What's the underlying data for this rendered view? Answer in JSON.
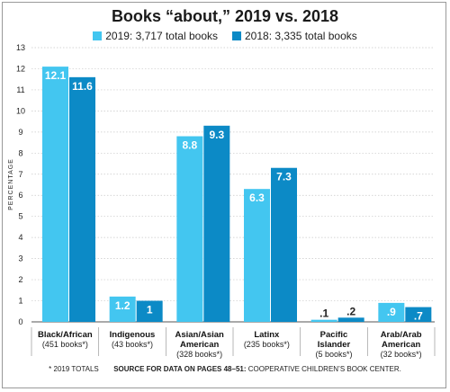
{
  "chart_data": {
    "type": "bar",
    "title": "Books “about,” 2019 vs. 2018",
    "ylabel": "PERCENTAGE",
    "ylim": [
      0,
      13
    ],
    "yticks": [
      "0",
      "1",
      "2",
      "3",
      "4",
      "5",
      "6",
      "7",
      "8",
      "9",
      "10",
      "11",
      "12",
      "13"
    ],
    "grid": true,
    "legend_position": "top",
    "categories": [
      {
        "line1": "Black/African",
        "line2": "",
        "note": "(451 books*)"
      },
      {
        "line1": "Indigenous",
        "line2": "",
        "note": "(43 books*)"
      },
      {
        "line1": "Asian/Asian",
        "line2": "American",
        "note": "(328 books*)"
      },
      {
        "line1": "Latinx",
        "line2": "",
        "note": "(235 books*)"
      },
      {
        "line1": "Pacific",
        "line2": "Islander",
        "note": "(5 books*)"
      },
      {
        "line1": "Arab/Arab",
        "line2": "American",
        "note": "(32 books*)"
      }
    ],
    "series": [
      {
        "name": "2019: 3,717 total books",
        "color": "#43c6f0",
        "values": [
          12.1,
          1.2,
          8.8,
          6.3,
          0.1,
          0.9
        ],
        "labels": [
          "12.1",
          "1.2",
          "8.8",
          "6.3",
          ".1",
          ".9"
        ]
      },
      {
        "name": "2018: 3,335 total books",
        "color": "#0c8ac6",
        "values": [
          11.6,
          1.0,
          9.3,
          7.3,
          0.2,
          0.7
        ],
        "labels": [
          "11.6",
          "1",
          "9.3",
          "7.3",
          ".2",
          ".7"
        ]
      }
    ]
  },
  "footnote": {
    "totals": "* 2019 TOTALS",
    "source_bold": "SOURCE FOR DATA ON PAGES 48–51:",
    "source_rest": " COOPERATIVE CHILDREN’S BOOK CENTER."
  }
}
